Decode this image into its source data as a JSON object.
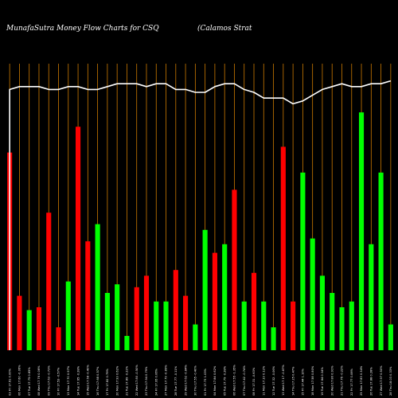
{
  "chart_data": {
    "type": "bar",
    "title_left": "MunafaSutra  Money Flow  Charts for CSQ",
    "title_right": "(Calamos Strat",
    "ylim": [
      0,
      100
    ],
    "line_ylim": [
      0,
      100
    ],
    "colors": {
      "background": "#000000",
      "up": "#00ff00",
      "down": "#ff0000",
      "grid": "#cc7a00",
      "line": "#ffffff",
      "text": "#ffffff"
    },
    "categories": [
      "03 Fri 17.61 0.00%",
      "06 Mon 17.60 -0.06%",
      "07 Tue 17.75 0.85%",
      "08 Wed 17.76 0.06%",
      "09 Thu 17.63 -0.73%",
      "10 Fri 17.53 -0.57%",
      "13 Mon 17.70 0.97%",
      "14 Tue 17.65 -0.28%",
      "15 Wed 17.58 -0.40%",
      "16 Thu 17.68 0.57%",
      "17 Fri 17.82 0.79%",
      "20 Mon 17.93 0.62%",
      "21 Tue 17.89 -0.22%",
      "22 Wed 17.80 -0.50%",
      "23 Thu 17.94 0.79%",
      "24 Fri 17.95 0.06%",
      "27 Mon 17.79 -0.89%",
      "28 Tue 17.77 -0.11%",
      "29 Wed 17.62 -0.84%",
      "30 Thu 17.55 -0.40%",
      "01 Fri 17.73 1.03%",
      "04 Mon 17.84 0.62%",
      "05 Tue 17.79 -0.28%",
      "06 Wed 17.55 -1.35%",
      "07 Thu 17.42 -0.74%",
      "08 Fri 17.31 -0.63%",
      "11 Mon 17.33 0.12%",
      "12 Tue 17.32 -0.06%",
      "13 Wed 17.17 -0.87%",
      "14 Thu 17.25 0.47%",
      "15 Fri 17.44 1.10%",
      "18 Mon 17.58 0.80%",
      "19 Tue 17.64 0.34%",
      "20 Wed 17.80 0.91%",
      "21 Thu 17.76 -0.22%",
      "22 Fri 17.77 0.06%",
      "25 Mon 17.83 0.34%",
      "26 Tue 17.88 0.28%",
      "27 Wed 17.97 0.50%",
      "28 Thu 18.03 0.33%"
    ],
    "series": [
      {
        "values": [
          69,
          19,
          14,
          15,
          48,
          8,
          24,
          78,
          38,
          44,
          20,
          23,
          5,
          22,
          26,
          17,
          17,
          28,
          19,
          9,
          42,
          34,
          37,
          56,
          17,
          27,
          17,
          8,
          71,
          17,
          62,
          39,
          26,
          20,
          15,
          17,
          83,
          37,
          62,
          9
        ],
        "directions": [
          "down",
          "down",
          "up",
          "down",
          "down",
          "down",
          "up",
          "down",
          "down",
          "up",
          "up",
          "up",
          "up",
          "down",
          "down",
          "up",
          "up",
          "down",
          "down",
          "up",
          "up",
          "down",
          "up",
          "down",
          "up",
          "down",
          "up",
          "up",
          "down",
          "down",
          "up",
          "up",
          "up",
          "up",
          "up",
          "up",
          "up",
          "up",
          "up",
          "up"
        ]
      }
    ],
    "line_values": [
      91,
      92,
      92,
      92,
      91,
      91,
      92,
      92,
      91,
      91,
      92,
      93,
      93,
      93,
      92,
      93,
      93,
      91,
      91,
      90,
      90,
      92,
      93,
      93,
      91,
      90,
      88,
      88,
      88,
      86,
      87,
      89,
      91,
      92,
      93,
      92,
      92,
      93,
      93,
      94
    ],
    "vertical_grid": true,
    "horizontal_grid": false
  }
}
